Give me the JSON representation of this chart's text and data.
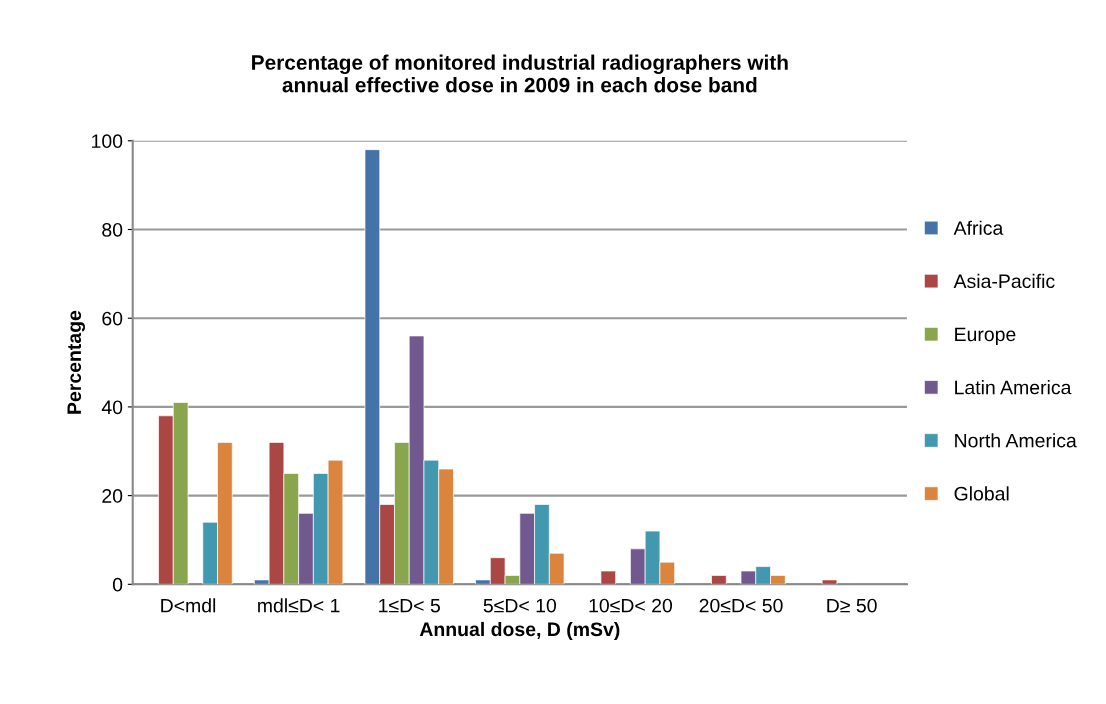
{
  "chart_data": {
    "type": "bar",
    "title": "Percentage of monitored industrial radiographers with\nannual effective dose in 2009 in each dose band",
    "xlabel": "Annual dose, D (mSv)",
    "ylabel": "Percentage",
    "categories": [
      "D<mdl",
      "mdl≤D< 1",
      "1≤D< 5",
      "5≤D< 10",
      "10≤D< 20",
      "20≤D< 50",
      "D≥ 50"
    ],
    "series": [
      {
        "name": "Africa",
        "color": "#4572a7",
        "values": [
          null,
          1,
          98,
          1,
          null,
          null,
          null
        ]
      },
      {
        "name": "Asia-Pacific",
        "color": "#aa4643",
        "values": [
          38,
          32,
          18,
          6,
          3,
          2,
          1
        ]
      },
      {
        "name": "Europe",
        "color": "#89a54e",
        "values": [
          41,
          25,
          32,
          2,
          null,
          null,
          null
        ]
      },
      {
        "name": "Latin America",
        "color": "#71588f",
        "values": [
          null,
          16,
          56,
          16,
          8,
          3,
          null
        ]
      },
      {
        "name": "North America",
        "color": "#4198af",
        "values": [
          14,
          25,
          28,
          18,
          12,
          4,
          null
        ]
      },
      {
        "name": "Global",
        "color": "#db843d",
        "values": [
          32,
          28,
          26,
          7,
          5,
          2,
          null
        ]
      }
    ],
    "ylim": [
      0,
      100
    ],
    "yticks": [
      0,
      20,
      40,
      60,
      80,
      100
    ],
    "grid": "y",
    "legend": "right"
  }
}
